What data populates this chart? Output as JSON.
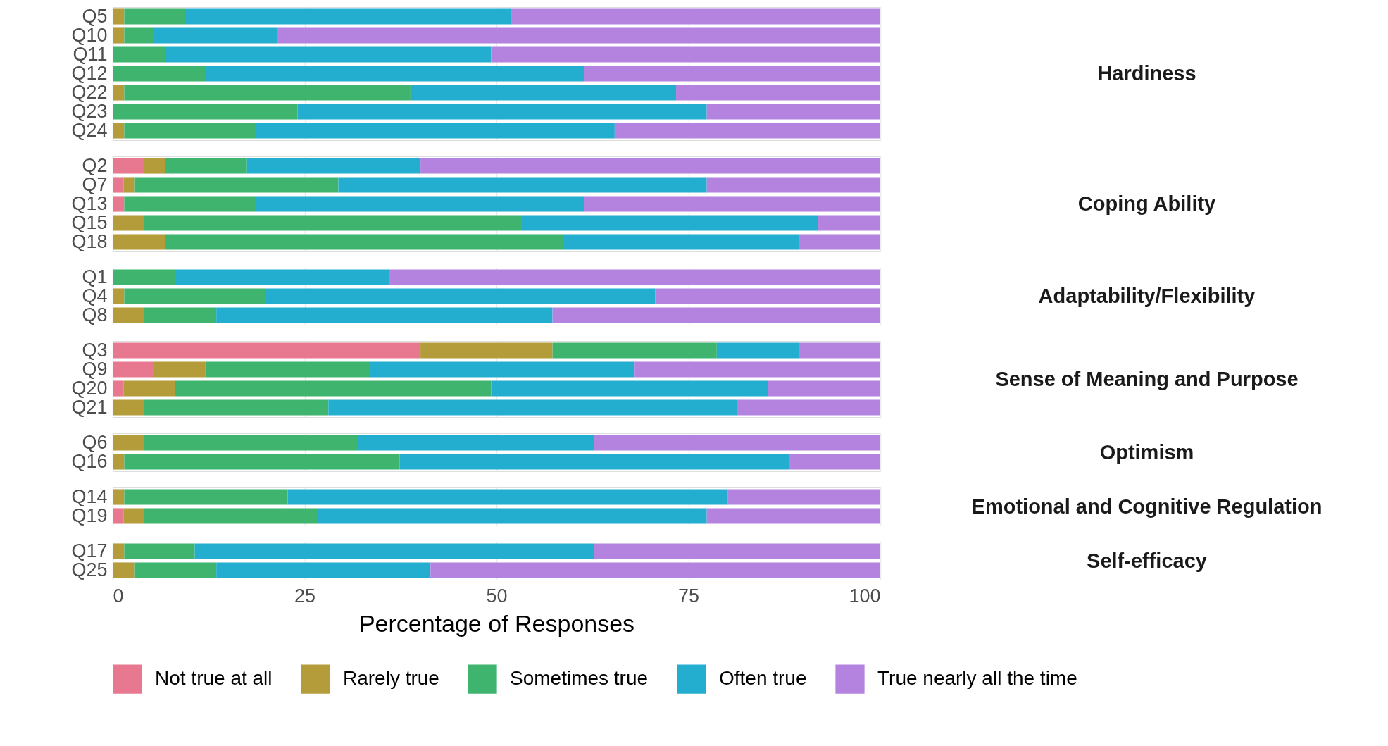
{
  "chart_data": [
    {
      "type": "bar",
      "y2label": "Hardiness",
      "orientation": "horizontal",
      "stacked": true,
      "grid": "x",
      "tick_labels": "y",
      "xlim": [
        0,
        100
      ],
      "xticks": [
        0,
        25,
        50,
        75,
        100
      ],
      "categories": [
        "Q5",
        "Q10",
        "Q11",
        "Q12",
        "Q22",
        "Q23",
        "Q24"
      ],
      "series": [
        {
          "color": "#e7788f",
          "values": [
            0,
            0,
            0,
            0,
            0,
            0,
            0
          ]
        },
        {
          "color": "#b59c3b",
          "values": [
            1.5,
            1.5,
            0,
            0,
            1.5,
            0,
            1.5
          ]
        },
        {
          "color": "#3fb46f",
          "values": [
            7.9,
            3.9,
            6.8,
            12.2,
            37.3,
            24.1,
            17.2
          ]
        },
        {
          "color": "#23aecf",
          "values": [
            42.6,
            16.0,
            42.5,
            49.2,
            34.6,
            53.3,
            46.7
          ]
        },
        {
          "color": "#b383df",
          "values": [
            48.0,
            78.6,
            50.7,
            38.6,
            26.6,
            22.6,
            34.6
          ]
        }
      ]
    },
    {
      "type": "bar",
      "y2label": "Coping Ability",
      "orientation": "horizontal",
      "stacked": true,
      "grid": "x",
      "tick_labels": "y",
      "xlim": [
        0,
        100
      ],
      "xticks": [
        0,
        25,
        50,
        75,
        100
      ],
      "categories": [
        "Q2",
        "Q7",
        "Q13",
        "Q15",
        "Q18"
      ],
      "series": [
        {
          "color": "#e7788f",
          "values": [
            4.1,
            1.4,
            1.5,
            0,
            0
          ]
        },
        {
          "color": "#b59c3b",
          "values": [
            2.7,
            1.4,
            0,
            4.1,
            6.8
          ]
        },
        {
          "color": "#3fb46f",
          "values": [
            10.7,
            26.6,
            17.2,
            49.2,
            51.9
          ]
        },
        {
          "color": "#23aecf",
          "values": [
            22.6,
            48.0,
            42.7,
            38.6,
            30.7
          ]
        },
        {
          "color": "#b383df",
          "values": [
            59.9,
            22.6,
            38.6,
            8.1,
            10.6
          ]
        }
      ]
    },
    {
      "type": "bar",
      "y2label": "Adaptability/Flexibility",
      "orientation": "horizontal",
      "stacked": true,
      "grid": "x",
      "tick_labels": "y",
      "xlim": [
        0,
        100
      ],
      "xticks": [
        0,
        25,
        50,
        75,
        100
      ],
      "categories": [
        "Q1",
        "Q4",
        "Q8"
      ],
      "series": [
        {
          "color": "#e7788f",
          "values": [
            0,
            0,
            0
          ]
        },
        {
          "color": "#b59c3b",
          "values": [
            0,
            1.5,
            4.1
          ]
        },
        {
          "color": "#3fb46f",
          "values": [
            8.1,
            18.5,
            9.4
          ]
        },
        {
          "color": "#23aecf",
          "values": [
            27.9,
            50.7,
            43.8
          ]
        },
        {
          "color": "#b383df",
          "values": [
            64.0,
            29.3,
            42.7
          ]
        }
      ]
    },
    {
      "type": "bar",
      "y2label": "Sense of Meaning and Purpose",
      "orientation": "horizontal",
      "stacked": true,
      "grid": "x",
      "tick_labels": "y",
      "xlim": [
        0,
        100
      ],
      "xticks": [
        0,
        25,
        50,
        75,
        100
      ],
      "categories": [
        "Q3",
        "Q9",
        "Q20",
        "Q21"
      ],
      "series": [
        {
          "color": "#e7788f",
          "values": [
            40.1,
            5.4,
            1.4,
            0
          ]
        },
        {
          "color": "#b59c3b",
          "values": [
            17.2,
            6.7,
            6.7,
            4.1
          ]
        },
        {
          "color": "#3fb46f",
          "values": [
            21.4,
            21.4,
            41.2,
            24.0
          ]
        },
        {
          "color": "#23aecf",
          "values": [
            10.7,
            34.5,
            36.1,
            53.2
          ]
        },
        {
          "color": "#b383df",
          "values": [
            10.6,
            32.0,
            14.6,
            18.7
          ]
        }
      ]
    },
    {
      "type": "bar",
      "y2label": "Optimism",
      "orientation": "horizontal",
      "stacked": true,
      "grid": "x",
      "tick_labels": "y",
      "xlim": [
        0,
        100
      ],
      "xticks": [
        0,
        25,
        50,
        75,
        100
      ],
      "categories": [
        "Q6",
        "Q16"
      ],
      "series": [
        {
          "color": "#e7788f",
          "values": [
            0,
            0
          ]
        },
        {
          "color": "#b59c3b",
          "values": [
            4.1,
            1.5
          ]
        },
        {
          "color": "#3fb46f",
          "values": [
            27.9,
            35.9
          ]
        },
        {
          "color": "#23aecf",
          "values": [
            30.7,
            50.7
          ]
        },
        {
          "color": "#b383df",
          "values": [
            37.3,
            11.9
          ]
        }
      ]
    },
    {
      "type": "bar",
      "y2label": "Emotional and Cognitive Regulation",
      "orientation": "horizontal",
      "stacked": true,
      "grid": "x",
      "tick_labels": "y",
      "xlim": [
        0,
        100
      ],
      "xticks": [
        0,
        25,
        50,
        75,
        100
      ],
      "categories": [
        "Q14",
        "Q19"
      ],
      "series": [
        {
          "color": "#e7788f",
          "values": [
            0,
            1.4
          ]
        },
        {
          "color": "#b59c3b",
          "values": [
            1.5,
            2.7
          ]
        },
        {
          "color": "#3fb46f",
          "values": [
            21.3,
            22.6
          ]
        },
        {
          "color": "#23aecf",
          "values": [
            57.3,
            50.7
          ]
        },
        {
          "color": "#b383df",
          "values": [
            19.9,
            22.6
          ]
        }
      ]
    },
    {
      "type": "bar",
      "y2label": "Self-efficacy",
      "orientation": "horizontal",
      "stacked": true,
      "grid": "x",
      "xlabel": "Percentage of Responses",
      "legend": "bottom",
      "xlim": [
        0,
        100
      ],
      "xticks": [
        0,
        25,
        50,
        75,
        100
      ],
      "categories": [
        "Q17",
        "Q25"
      ],
      "series": [
        {
          "name": "Not true at all",
          "color": "#e7788f",
          "values": [
            0,
            0
          ]
        },
        {
          "name": "Rarely true",
          "color": "#b59c3b",
          "values": [
            1.5,
            2.8
          ]
        },
        {
          "name": "Sometimes true",
          "color": "#3fb46f",
          "values": [
            9.2,
            10.7
          ]
        },
        {
          "name": "Often true",
          "color": "#23aecf",
          "values": [
            52.0,
            27.9
          ]
        },
        {
          "name": "True nearly all the time",
          "color": "#b383df",
          "values": [
            37.3,
            58.6
          ]
        }
      ]
    }
  ]
}
